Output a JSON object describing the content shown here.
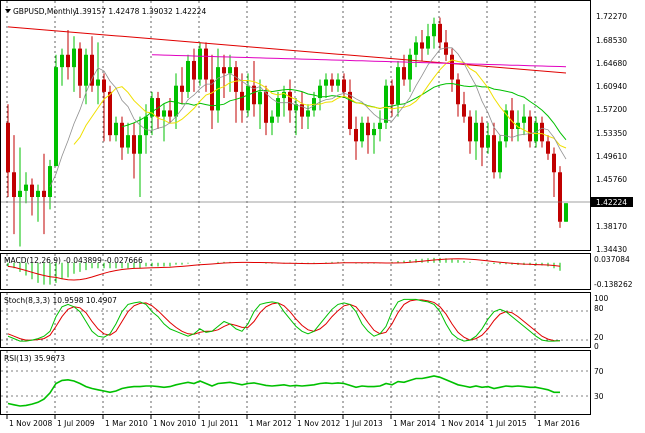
{
  "window": {
    "symbol_title": "GBPUSD,Monthly",
    "ohlc": "1.39157 1.42478 1.39032 1.42224",
    "current_price": "1.42224"
  },
  "colors": {
    "bull": "#00c000",
    "bear": "#c00000",
    "ma_red": "#e00000",
    "ma_magenta": "#e000c0",
    "ma_green": "#00c000",
    "ma_yellow": "#f0e000",
    "ma_gray": "#909090",
    "macd_line": "#e00000",
    "macd_hist": "#00c000",
    "stoch_main": "#00c000",
    "stoch_signal": "#e00000",
    "rsi_line": "#00c000"
  },
  "price_axis": {
    "ticks": [
      "1.72270",
      "1.68530",
      "1.64680",
      "1.60940",
      "1.57200",
      "1.53350",
      "1.49610",
      "1.45760",
      "1.38170",
      "1.34430"
    ]
  },
  "time_axis": {
    "labels": [
      "1 Nov 2008",
      "1 Jul 2009",
      "1 Mar 2010",
      "1 Nov 2010",
      "1 Jul 2011",
      "1 Mar 2012",
      "1 Nov 2012",
      "1 Jul 2013",
      "1 Mar 2014",
      "1 Nov 2014",
      "1 Jul 2015",
      "1 Mar 2016"
    ]
  },
  "macd": {
    "title": "MACD(12,26,9) -0.043899 -0.027666",
    "ticks": [
      "0.037084",
      "-0.138262"
    ]
  },
  "stoch": {
    "title": "Stoch(8,3,3) 10.9598 10.4907",
    "ticks": [
      "100",
      "80",
      "20",
      "0"
    ]
  },
  "rsi": {
    "title": "RSI(13) 35.9673",
    "ticks": [
      "70",
      "30"
    ]
  },
  "chart_data": {
    "type": "candlestick",
    "ylim": [
      1.3443,
      1.7227
    ],
    "series": [
      {
        "o": 1.55,
        "h": 1.58,
        "l": 1.43,
        "c": 1.47
      },
      {
        "o": 1.47,
        "h": 1.53,
        "l": 1.37,
        "c": 1.43
      },
      {
        "o": 1.43,
        "h": 1.51,
        "l": 1.35,
        "c": 1.44
      },
      {
        "o": 1.44,
        "h": 1.47,
        "l": 1.42,
        "c": 1.45
      },
      {
        "o": 1.45,
        "h": 1.46,
        "l": 1.4,
        "c": 1.43
      },
      {
        "o": 1.43,
        "h": 1.45,
        "l": 1.39,
        "c": 1.44
      },
      {
        "o": 1.44,
        "h": 1.5,
        "l": 1.37,
        "c": 1.43
      },
      {
        "o": 1.43,
        "h": 1.49,
        "l": 1.41,
        "c": 1.48
      },
      {
        "o": 1.48,
        "h": 1.66,
        "l": 1.48,
        "c": 1.64
      },
      {
        "o": 1.64,
        "h": 1.67,
        "l": 1.61,
        "c": 1.66
      },
      {
        "o": 1.66,
        "h": 1.7,
        "l": 1.62,
        "c": 1.64
      },
      {
        "o": 1.64,
        "h": 1.69,
        "l": 1.6,
        "c": 1.67
      },
      {
        "o": 1.67,
        "h": 1.68,
        "l": 1.59,
        "c": 1.61
      },
      {
        "o": 1.61,
        "h": 1.67,
        "l": 1.58,
        "c": 1.66
      },
      {
        "o": 1.66,
        "h": 1.69,
        "l": 1.6,
        "c": 1.61
      },
      {
        "o": 1.61,
        "h": 1.68,
        "l": 1.58,
        "c": 1.62
      },
      {
        "o": 1.62,
        "h": 1.63,
        "l": 1.52,
        "c": 1.6
      },
      {
        "o": 1.6,
        "h": 1.61,
        "l": 1.52,
        "c": 1.53
      },
      {
        "o": 1.53,
        "h": 1.56,
        "l": 1.52,
        "c": 1.55
      },
      {
        "o": 1.55,
        "h": 1.56,
        "l": 1.49,
        "c": 1.51
      },
      {
        "o": 1.51,
        "h": 1.55,
        "l": 1.5,
        "c": 1.53
      },
      {
        "o": 1.53,
        "h": 1.55,
        "l": 1.46,
        "c": 1.5
      },
      {
        "o": 1.5,
        "h": 1.56,
        "l": 1.43,
        "c": 1.53
      },
      {
        "o": 1.53,
        "h": 1.58,
        "l": 1.5,
        "c": 1.56
      },
      {
        "o": 1.56,
        "h": 1.6,
        "l": 1.53,
        "c": 1.59
      },
      {
        "o": 1.59,
        "h": 1.6,
        "l": 1.54,
        "c": 1.56
      },
      {
        "o": 1.56,
        "h": 1.58,
        "l": 1.52,
        "c": 1.57
      },
      {
        "o": 1.57,
        "h": 1.59,
        "l": 1.55,
        "c": 1.56
      },
      {
        "o": 1.56,
        "h": 1.63,
        "l": 1.54,
        "c": 1.61
      },
      {
        "o": 1.61,
        "h": 1.64,
        "l": 1.58,
        "c": 1.6
      },
      {
        "o": 1.6,
        "h": 1.66,
        "l": 1.59,
        "c": 1.65
      },
      {
        "o": 1.65,
        "h": 1.67,
        "l": 1.6,
        "c": 1.62
      },
      {
        "o": 1.62,
        "h": 1.68,
        "l": 1.61,
        "c": 1.67
      },
      {
        "o": 1.67,
        "h": 1.68,
        "l": 1.6,
        "c": 1.62
      },
      {
        "o": 1.62,
        "h": 1.66,
        "l": 1.54,
        "c": 1.57
      },
      {
        "o": 1.57,
        "h": 1.67,
        "l": 1.55,
        "c": 1.64
      },
      {
        "o": 1.64,
        "h": 1.66,
        "l": 1.59,
        "c": 1.63
      },
      {
        "o": 1.63,
        "h": 1.66,
        "l": 1.6,
        "c": 1.64
      },
      {
        "o": 1.64,
        "h": 1.65,
        "l": 1.55,
        "c": 1.6
      },
      {
        "o": 1.6,
        "h": 1.63,
        "l": 1.55,
        "c": 1.57
      },
      {
        "o": 1.57,
        "h": 1.63,
        "l": 1.56,
        "c": 1.61
      },
      {
        "o": 1.61,
        "h": 1.65,
        "l": 1.56,
        "c": 1.58
      },
      {
        "o": 1.58,
        "h": 1.62,
        "l": 1.54,
        "c": 1.6
      },
      {
        "o": 1.6,
        "h": 1.61,
        "l": 1.53,
        "c": 1.55
      },
      {
        "o": 1.55,
        "h": 1.57,
        "l": 1.53,
        "c": 1.56
      },
      {
        "o": 1.56,
        "h": 1.6,
        "l": 1.55,
        "c": 1.59
      },
      {
        "o": 1.59,
        "h": 1.61,
        "l": 1.56,
        "c": 1.6
      },
      {
        "o": 1.6,
        "h": 1.62,
        "l": 1.55,
        "c": 1.57
      },
      {
        "o": 1.57,
        "h": 1.59,
        "l": 1.53,
        "c": 1.58
      },
      {
        "o": 1.58,
        "h": 1.6,
        "l": 1.54,
        "c": 1.56
      },
      {
        "o": 1.56,
        "h": 1.58,
        "l": 1.54,
        "c": 1.57
      },
      {
        "o": 1.57,
        "h": 1.6,
        "l": 1.56,
        "c": 1.59
      },
      {
        "o": 1.59,
        "h": 1.62,
        "l": 1.57,
        "c": 1.61
      },
      {
        "o": 1.61,
        "h": 1.63,
        "l": 1.59,
        "c": 1.62
      },
      {
        "o": 1.62,
        "h": 1.63,
        "l": 1.6,
        "c": 1.61
      },
      {
        "o": 1.61,
        "h": 1.63,
        "l": 1.6,
        "c": 1.62
      },
      {
        "o": 1.62,
        "h": 1.63,
        "l": 1.59,
        "c": 1.6
      },
      {
        "o": 1.6,
        "h": 1.62,
        "l": 1.53,
        "c": 1.54
      },
      {
        "o": 1.54,
        "h": 1.56,
        "l": 1.49,
        "c": 1.52
      },
      {
        "o": 1.52,
        "h": 1.56,
        "l": 1.51,
        "c": 1.55
      },
      {
        "o": 1.55,
        "h": 1.56,
        "l": 1.5,
        "c": 1.53
      },
      {
        "o": 1.53,
        "h": 1.55,
        "l": 1.5,
        "c": 1.54
      },
      {
        "o": 1.54,
        "h": 1.57,
        "l": 1.52,
        "c": 1.55
      },
      {
        "o": 1.55,
        "h": 1.62,
        "l": 1.54,
        "c": 1.61
      },
      {
        "o": 1.61,
        "h": 1.62,
        "l": 1.56,
        "c": 1.58
      },
      {
        "o": 1.58,
        "h": 1.65,
        "l": 1.56,
        "c": 1.64
      },
      {
        "o": 1.64,
        "h": 1.66,
        "l": 1.61,
        "c": 1.62
      },
      {
        "o": 1.62,
        "h": 1.67,
        "l": 1.6,
        "c": 1.66
      },
      {
        "o": 1.66,
        "h": 1.69,
        "l": 1.64,
        "c": 1.68
      },
      {
        "o": 1.68,
        "h": 1.7,
        "l": 1.65,
        "c": 1.67
      },
      {
        "o": 1.67,
        "h": 1.71,
        "l": 1.66,
        "c": 1.69
      },
      {
        "o": 1.69,
        "h": 1.72,
        "l": 1.67,
        "c": 1.71
      },
      {
        "o": 1.71,
        "h": 1.72,
        "l": 1.67,
        "c": 1.68
      },
      {
        "o": 1.68,
        "h": 1.7,
        "l": 1.65,
        "c": 1.66
      },
      {
        "o": 1.66,
        "h": 1.67,
        "l": 1.6,
        "c": 1.62
      },
      {
        "o": 1.62,
        "h": 1.63,
        "l": 1.56,
        "c": 1.58
      },
      {
        "o": 1.58,
        "h": 1.6,
        "l": 1.55,
        "c": 1.56
      },
      {
        "o": 1.56,
        "h": 1.57,
        "l": 1.5,
        "c": 1.52
      },
      {
        "o": 1.52,
        "h": 1.57,
        "l": 1.49,
        "c": 1.55
      },
      {
        "o": 1.55,
        "h": 1.56,
        "l": 1.48,
        "c": 1.51
      },
      {
        "o": 1.51,
        "h": 1.55,
        "l": 1.5,
        "c": 1.53
      },
      {
        "o": 1.53,
        "h": 1.55,
        "l": 1.46,
        "c": 1.47
      },
      {
        "o": 1.47,
        "h": 1.53,
        "l": 1.46,
        "c": 1.52
      },
      {
        "o": 1.52,
        "h": 1.58,
        "l": 1.51,
        "c": 1.57
      },
      {
        "o": 1.57,
        "h": 1.59,
        "l": 1.52,
        "c": 1.54
      },
      {
        "o": 1.54,
        "h": 1.57,
        "l": 1.52,
        "c": 1.55
      },
      {
        "o": 1.55,
        "h": 1.58,
        "l": 1.53,
        "c": 1.56
      },
      {
        "o": 1.56,
        "h": 1.57,
        "l": 1.51,
        "c": 1.52
      },
      {
        "o": 1.52,
        "h": 1.56,
        "l": 1.51,
        "c": 1.55
      },
      {
        "o": 1.55,
        "h": 1.56,
        "l": 1.51,
        "c": 1.52
      },
      {
        "o": 1.52,
        "h": 1.53,
        "l": 1.49,
        "c": 1.5
      },
      {
        "o": 1.5,
        "h": 1.51,
        "l": 1.43,
        "c": 1.47
      },
      {
        "o": 1.47,
        "h": 1.48,
        "l": 1.38,
        "c": 1.39
      },
      {
        "o": 1.39,
        "h": 1.42,
        "l": 1.39,
        "c": 1.42
      }
    ],
    "macd_values": [
      -0.02,
      -0.03,
      -0.05,
      -0.07,
      -0.09,
      -0.11,
      -0.12,
      -0.12,
      -0.11,
      -0.09,
      -0.08,
      -0.06,
      -0.05,
      -0.04,
      -0.03,
      -0.03,
      -0.03,
      -0.03,
      -0.03,
      -0.03,
      -0.03,
      -0.03,
      -0.03,
      -0.02,
      -0.02,
      -0.02,
      -0.02,
      -0.02,
      -0.01,
      -0.01,
      -0.005,
      0.0,
      0.005,
      0.0,
      0.0,
      0.005,
      0.005,
      0.005,
      0.0,
      0.0,
      0.0,
      0.0,
      0.0,
      -0.005,
      -0.005,
      -0.005,
      -0.005,
      -0.005,
      -0.005,
      -0.005,
      -0.005,
      -0.003,
      0.0,
      0.003,
      0.005,
      0.005,
      0.005,
      0.0,
      -0.005,
      -0.005,
      -0.005,
      -0.005,
      -0.003,
      0.0,
      0.005,
      0.01,
      0.012,
      0.015,
      0.02,
      0.022,
      0.025,
      0.027,
      0.027,
      0.025,
      0.02,
      0.015,
      0.01,
      0.005,
      0.0,
      -0.003,
      -0.005,
      -0.007,
      -0.008,
      -0.008,
      -0.01,
      -0.012,
      -0.012,
      -0.013,
      -0.014,
      -0.015,
      -0.02,
      -0.03,
      -0.044
    ],
    "stoch_main": [
      20,
      15,
      10,
      10,
      12,
      15,
      20,
      30,
      60,
      80,
      85,
      80,
      70,
      50,
      30,
      20,
      18,
      25,
      45,
      70,
      85,
      88,
      90,
      85,
      70,
      60,
      45,
      35,
      30,
      25,
      20,
      25,
      35,
      28,
      30,
      40,
      50,
      45,
      35,
      30,
      45,
      70,
      85,
      88,
      90,
      88,
      70,
      55,
      40,
      30,
      25,
      30,
      45,
      60,
      75,
      85,
      88,
      85,
      70,
      45,
      30,
      20,
      25,
      40,
      70,
      90,
      95,
      95,
      95,
      92,
      90,
      85,
      70,
      45,
      25,
      15,
      10,
      12,
      20,
      35,
      55,
      70,
      75,
      70,
      60,
      50,
      40,
      30,
      20,
      12,
      10,
      10,
      11
    ],
    "stoch_signal": [
      25,
      20,
      15,
      12,
      12,
      13,
      15,
      22,
      40,
      60,
      75,
      80,
      78,
      68,
      50,
      35,
      25,
      22,
      30,
      50,
      70,
      82,
      87,
      88,
      82,
      72,
      60,
      48,
      38,
      30,
      25,
      24,
      28,
      30,
      30,
      33,
      40,
      45,
      42,
      38,
      38,
      50,
      68,
      80,
      86,
      88,
      82,
      70,
      55,
      42,
      33,
      30,
      35,
      45,
      60,
      72,
      82,
      85,
      80,
      65,
      48,
      32,
      25,
      28,
      45,
      68,
      85,
      92,
      94,
      94,
      92,
      89,
      80,
      65,
      45,
      28,
      18,
      12,
      15,
      22,
      35,
      52,
      65,
      70,
      68,
      60,
      50,
      40,
      30,
      20,
      14,
      11,
      10.5
    ],
    "rsi_values": [
      18,
      16,
      14,
      15,
      17,
      20,
      25,
      35,
      50,
      55,
      56,
      54,
      50,
      45,
      42,
      40,
      38,
      36,
      38,
      42,
      44,
      45,
      45,
      46,
      46,
      45,
      44,
      45,
      48,
      50,
      52,
      50,
      54,
      50,
      46,
      50,
      51,
      52,
      50,
      48,
      50,
      51,
      49,
      47,
      46,
      47,
      48,
      46,
      47,
      46,
      47,
      48,
      50,
      51,
      50,
      51,
      50,
      47,
      44,
      46,
      45,
      45,
      46,
      50,
      48,
      53,
      52,
      55,
      58,
      58,
      60,
      62,
      60,
      56,
      52,
      48,
      46,
      44,
      46,
      44,
      45,
      42,
      44,
      46,
      45,
      46,
      45,
      44,
      44,
      42,
      40,
      36,
      36
    ]
  }
}
